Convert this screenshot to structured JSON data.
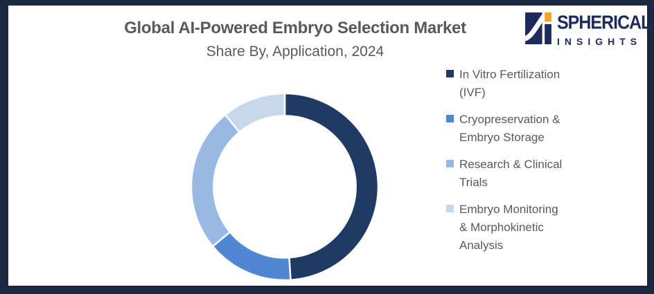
{
  "header": {
    "title": "Global AI-Powered Embryo Selection Market",
    "subtitle": "Share By, Application, 2024"
  },
  "logo": {
    "line1": "SPHERICAL",
    "line2": "INSIGHTS",
    "colors": {
      "navy": "#1E2A5E",
      "orange": "#F2A51F"
    }
  },
  "frame": {
    "border_color": "#1A273E",
    "background": "#FFFFFF"
  },
  "text_color": "#595959",
  "chart_data": {
    "type": "donut",
    "title": "Global AI-Powered Embryo Selection Market",
    "subtitle": "Share By, Application, 2024",
    "unit": "% market share",
    "note": "no data labels shown in chart; values estimated from arc angles",
    "start_angle_deg": 0,
    "direction": "clockwise",
    "inner_radius_ratio": 0.76,
    "legend_position": "right",
    "segments": [
      {
        "label": "In Vitro Fertilization (IVF)",
        "legend_text": "In Vitro Fertilization\n(IVF)",
        "value": 49,
        "color": "#1F3B63"
      },
      {
        "label": "Cryopreservation & Embryo Storage",
        "legend_text": "Cryopreservation &\nEmbryo Storage",
        "value": 15,
        "color": "#5186D4"
      },
      {
        "label": "Research & Clinical Trials",
        "legend_text": "Research & Clinical\nTrials",
        "value": 25,
        "color": "#98B9E4"
      },
      {
        "label": "Embryo Monitoring & Morphokinetic Analysis",
        "legend_text": "Embryo Monitoring\n& Morphokinetic\nAnalysis",
        "value": 11,
        "color": "#C8D6EC"
      }
    ]
  }
}
